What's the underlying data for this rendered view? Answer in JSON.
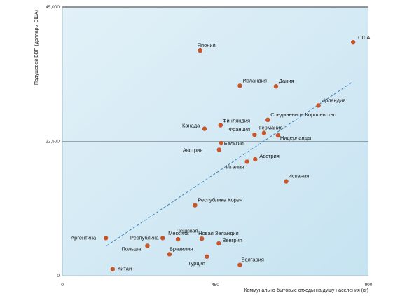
{
  "chart_data": {
    "type": "scatter",
    "title": "",
    "xlabel": "Коммунально-бытовые отходы на душу населения (кг)",
    "ylabel": "Подушевой ВВП (доллары США)",
    "xlim": [
      0,
      900
    ],
    "ylim": [
      0,
      45000
    ],
    "xticks": [
      {
        "value": 0,
        "label": "0"
      },
      {
        "value": 450,
        "label": "450"
      },
      {
        "value": 900,
        "label": "900"
      }
    ],
    "yticks": [
      {
        "value": 0,
        "label": "0"
      },
      {
        "value": 22500,
        "label": "22,500"
      },
      {
        "value": 45000,
        "label": "45,000"
      }
    ],
    "reference_line_y": 22500,
    "trendline": {
      "x": [
        130,
        855
      ],
      "y": [
        5000,
        32500
      ]
    },
    "points": [
      {
        "label": "США",
        "x": 855,
        "y": 39100
      },
      {
        "label": "Япония",
        "x": 405,
        "y": 37700
      },
      {
        "label": "Исландия",
        "x": 522,
        "y": 31800
      },
      {
        "label": "Дания",
        "x": 628,
        "y": 31700
      },
      {
        "label": "Ирландия",
        "x": 753,
        "y": 28500
      },
      {
        "label": "Соединенное Королевство",
        "x": 604,
        "y": 26100
      },
      {
        "label": "Финляндия",
        "x": 465,
        "y": 25200
      },
      {
        "label": "Канада",
        "x": 418,
        "y": 24600
      },
      {
        "label": "Германия",
        "x": 593,
        "y": 23900
      },
      {
        "label": "Франция",
        "x": 565,
        "y": 23600
      },
      {
        "label": "Нидерланды",
        "x": 634,
        "y": 23500
      },
      {
        "label": "Бельгия",
        "x": 467,
        "y": 22200
      },
      {
        "label": "Австрия",
        "x": 461,
        "y": 21100
      },
      {
        "label": "Австрия",
        "x": 567,
        "y": 19500
      },
      {
        "label": "Италия",
        "x": 543,
        "y": 19100
      },
      {
        "label": "Испания",
        "x": 658,
        "y": 15800
      },
      {
        "label": "Республика Корея",
        "x": 390,
        "y": 11800
      },
      {
        "label": "Аргентина",
        "x": 128,
        "y": 6300
      },
      {
        "label": "Чешская Республика",
        "x": 295,
        "y": 6300
      },
      {
        "label": "Мексика",
        "x": 340,
        "y": 6100
      },
      {
        "label": "Новая Зеландия",
        "x": 410,
        "y": 6200
      },
      {
        "label": "Венгрия",
        "x": 460,
        "y": 5400
      },
      {
        "label": "Польша",
        "x": 250,
        "y": 5000
      },
      {
        "label": "Бразилия",
        "x": 315,
        "y": 3600
      },
      {
        "label": "Турция",
        "x": 425,
        "y": 3200
      },
      {
        "label": "Болгария",
        "x": 522,
        "y": 1800
      },
      {
        "label": "Китай",
        "x": 148,
        "y": 1100
      }
    ]
  }
}
